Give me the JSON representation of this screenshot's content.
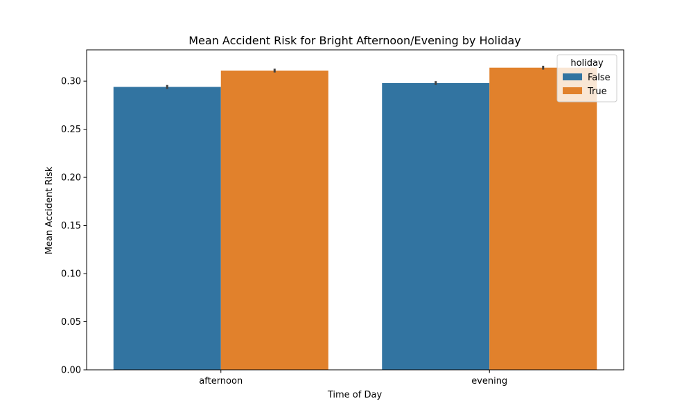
{
  "chart_data": {
    "type": "bar",
    "title": "Mean Accident Risk for Bright Afternoon/Evening by Holiday",
    "xlabel": "Time of Day",
    "ylabel": "Mean Accident Risk",
    "categories": [
      "afternoon",
      "evening"
    ],
    "series": [
      {
        "name": "False",
        "values": [
          0.294,
          0.298
        ],
        "error": [
          [
            0.292,
            0.296
          ],
          [
            0.296,
            0.3
          ]
        ],
        "color": "#3274a1"
      },
      {
        "name": "True",
        "values": [
          0.311,
          0.314
        ],
        "error": [
          [
            0.309,
            0.313
          ],
          [
            0.312,
            0.316
          ]
        ],
        "color": "#e1812c"
      }
    ],
    "ylim": [
      0,
      0.3325
    ],
    "yticks": [
      0.0,
      0.05,
      0.1,
      0.15,
      0.2,
      0.25,
      0.3
    ],
    "ytick_labels": [
      "0.00",
      "0.05",
      "0.10",
      "0.15",
      "0.20",
      "0.25",
      "0.30"
    ],
    "legend": {
      "title": "holiday",
      "placement": "top-right"
    },
    "grid": false
  }
}
